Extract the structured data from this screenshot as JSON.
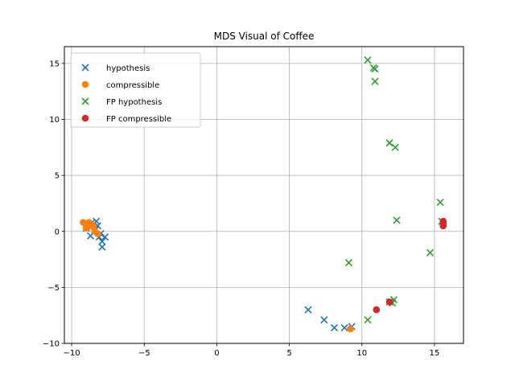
{
  "chart_data": {
    "type": "scatter",
    "title": "MDS Visual of Coffee",
    "xlabel": "",
    "ylabel": "",
    "xlim": [
      -10.5,
      17
    ],
    "ylim": [
      -10,
      16.5
    ],
    "x_ticks": [
      -10,
      -5,
      0,
      5,
      10,
      15
    ],
    "y_ticks": [
      -10,
      -5,
      0,
      5,
      10,
      15
    ],
    "x_tick_labels": [
      "−10",
      "−5",
      "0",
      "5",
      "10",
      "15"
    ],
    "y_tick_labels": [
      "−10",
      "−5",
      "0",
      "5",
      "10",
      "15"
    ],
    "grid": true,
    "legend_position": "top-left",
    "series": [
      {
        "name": "hypothesis",
        "marker": "x",
        "color": "#1f77b4",
        "points": [
          [
            -8.3,
            0.9
          ],
          [
            -8.9,
            0.6
          ],
          [
            -8.4,
            0.1
          ],
          [
            -9.0,
            0.3
          ],
          [
            -8.7,
            -0.4
          ],
          [
            -8.2,
            0.5
          ],
          [
            -8.0,
            -0.2
          ],
          [
            -7.7,
            -0.5
          ],
          [
            -7.9,
            -0.9
          ],
          [
            -7.9,
            -1.4
          ],
          [
            -8.1,
            -0.5
          ],
          [
            -8.6,
            0.8
          ],
          [
            6.3,
            -7.0
          ],
          [
            7.4,
            -7.9
          ],
          [
            8.1,
            -8.6
          ],
          [
            8.8,
            -8.6
          ],
          [
            9.3,
            -8.5
          ]
        ]
      },
      {
        "name": "compressible",
        "marker": "o",
        "color": "#ff7f0e",
        "points": [
          [
            -9.2,
            0.8
          ],
          [
            -8.8,
            0.8
          ],
          [
            -8.9,
            0.4
          ],
          [
            -8.6,
            0.6
          ],
          [
            -8.5,
            0.4
          ],
          [
            -9.0,
            0.3
          ],
          [
            -8.4,
            0.0
          ],
          [
            -8.2,
            -0.2
          ],
          [
            9.2,
            -8.7
          ]
        ]
      },
      {
        "name": "FP hypothesis",
        "marker": "x",
        "color": "#2ca02c",
        "points": [
          [
            10.4,
            15.3
          ],
          [
            10.8,
            14.6
          ],
          [
            10.9,
            14.5
          ],
          [
            10.9,
            13.4
          ],
          [
            11.9,
            7.9
          ],
          [
            12.3,
            7.5
          ],
          [
            15.4,
            2.6
          ],
          [
            12.4,
            1.0
          ],
          [
            15.5,
            0.9
          ],
          [
            14.7,
            -1.9
          ],
          [
            9.1,
            -2.8
          ],
          [
            12.2,
            -6.1
          ],
          [
            12.1,
            -6.4
          ],
          [
            10.4,
            -7.9
          ],
          [
            11.9,
            -6.3
          ]
        ]
      },
      {
        "name": "FP compressible",
        "marker": "o",
        "color": "#d62728",
        "points": [
          [
            15.6,
            0.9
          ],
          [
            15.6,
            0.7
          ],
          [
            15.6,
            0.5
          ],
          [
            11.9,
            -6.3
          ],
          [
            11.0,
            -7.0
          ]
        ]
      }
    ]
  }
}
